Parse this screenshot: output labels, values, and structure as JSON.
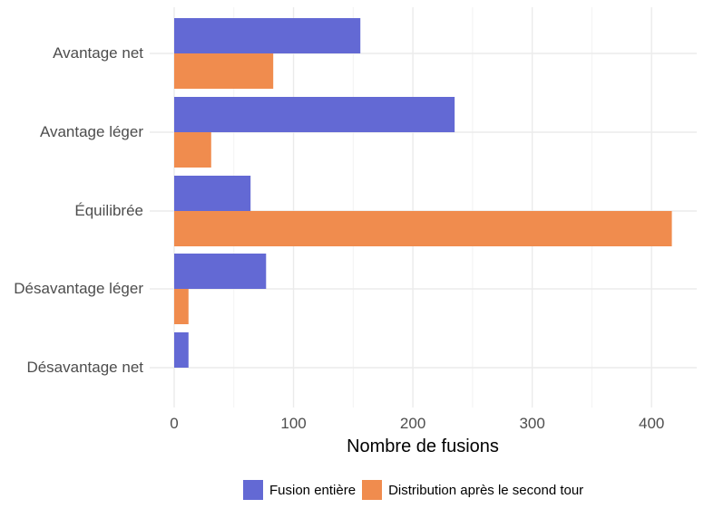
{
  "chart_data": {
    "type": "bar",
    "orientation": "horizontal",
    "title": "",
    "xlabel": "Nombre de fusions",
    "ylabel": "",
    "xlim": [
      0,
      425
    ],
    "x_ticks": [
      0,
      100,
      200,
      300,
      400
    ],
    "categories": [
      "Avantage net",
      "Avantage léger",
      "Équilibrée",
      "Désavantage léger",
      "Désavantage net"
    ],
    "series": [
      {
        "name": "Fusion entière",
        "color": "#6369d4",
        "values": [
          156,
          235,
          64,
          77,
          12
        ]
      },
      {
        "name": "Distribution après le second tour",
        "color": "#f08c4e",
        "values": [
          83,
          31,
          417,
          12,
          0
        ]
      }
    ],
    "grid": true,
    "legend_position": "bottom"
  },
  "legend": {
    "items": [
      {
        "label": "Fusion entière",
        "color": "#6369d4"
      },
      {
        "label": "Distribution après le second tour",
        "color": "#f08c4e"
      }
    ]
  }
}
